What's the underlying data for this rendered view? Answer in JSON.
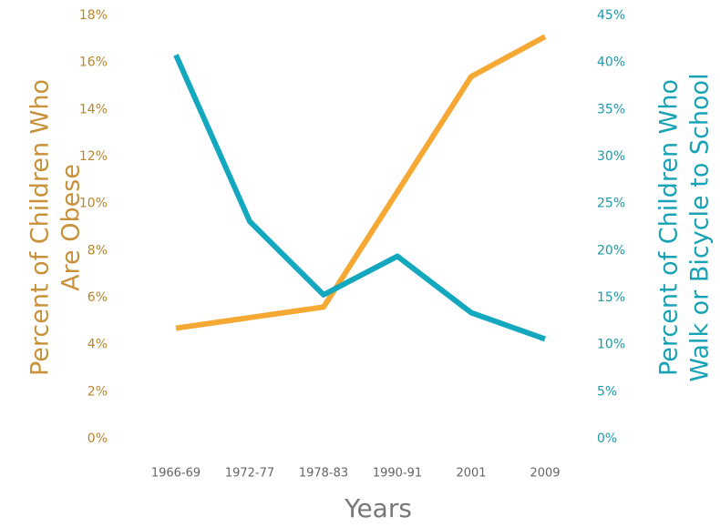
{
  "chart_data": {
    "type": "line",
    "x_label": "Years",
    "y_label": [
      "Percent of Children Who",
      "Are Obese"
    ],
    "y2_label": [
      "Percent of Children Who",
      "Walk or Bicycle to School"
    ],
    "categories": [
      "1966-69",
      "1972-77",
      "1978-83",
      "1990-91",
      "2001",
      "2009"
    ],
    "series": [
      {
        "name": "Percent of Children Who Are Obese",
        "color": "#f5a833",
        "values": [
          4.7,
          5.15,
          5.6,
          10.5,
          15.4,
          17.1
        ]
      },
      {
        "name": "Percent of Children Who Walk or Bicycle to School",
        "color": "#13a8be",
        "axis": "y2",
        "values": [
          40.8,
          23.1,
          15.3,
          19.4,
          13.4,
          10.6
        ]
      }
    ],
    "ylim": [
      0,
      18
    ],
    "yticks": [
      {
        "value": 0,
        "label": "0%"
      },
      {
        "value": 2,
        "label": "2%"
      },
      {
        "value": 4,
        "label": "4%"
      },
      {
        "value": 6,
        "label": "6%"
      },
      {
        "value": 8,
        "label": "8%"
      },
      {
        "value": 10,
        "label": "10%"
      },
      {
        "value": 12,
        "label": "12%"
      },
      {
        "value": 14,
        "label": "14%"
      },
      {
        "value": 16,
        "label": "16%"
      },
      {
        "value": 18,
        "label": "18%"
      }
    ],
    "y2lim": [
      0,
      45
    ],
    "y2ticks": [
      {
        "value": 0,
        "label": "0%"
      },
      {
        "value": 5,
        "label": "5%"
      },
      {
        "value": 10,
        "label": "10%"
      },
      {
        "value": 15,
        "label": "15%"
      },
      {
        "value": 20,
        "label": "20%"
      },
      {
        "value": 25,
        "label": "25%"
      },
      {
        "value": 30,
        "label": "30%"
      },
      {
        "value": 35,
        "label": "35%"
      },
      {
        "value": 40,
        "label": "40%"
      },
      {
        "value": 45,
        "label": "45%"
      }
    ]
  }
}
